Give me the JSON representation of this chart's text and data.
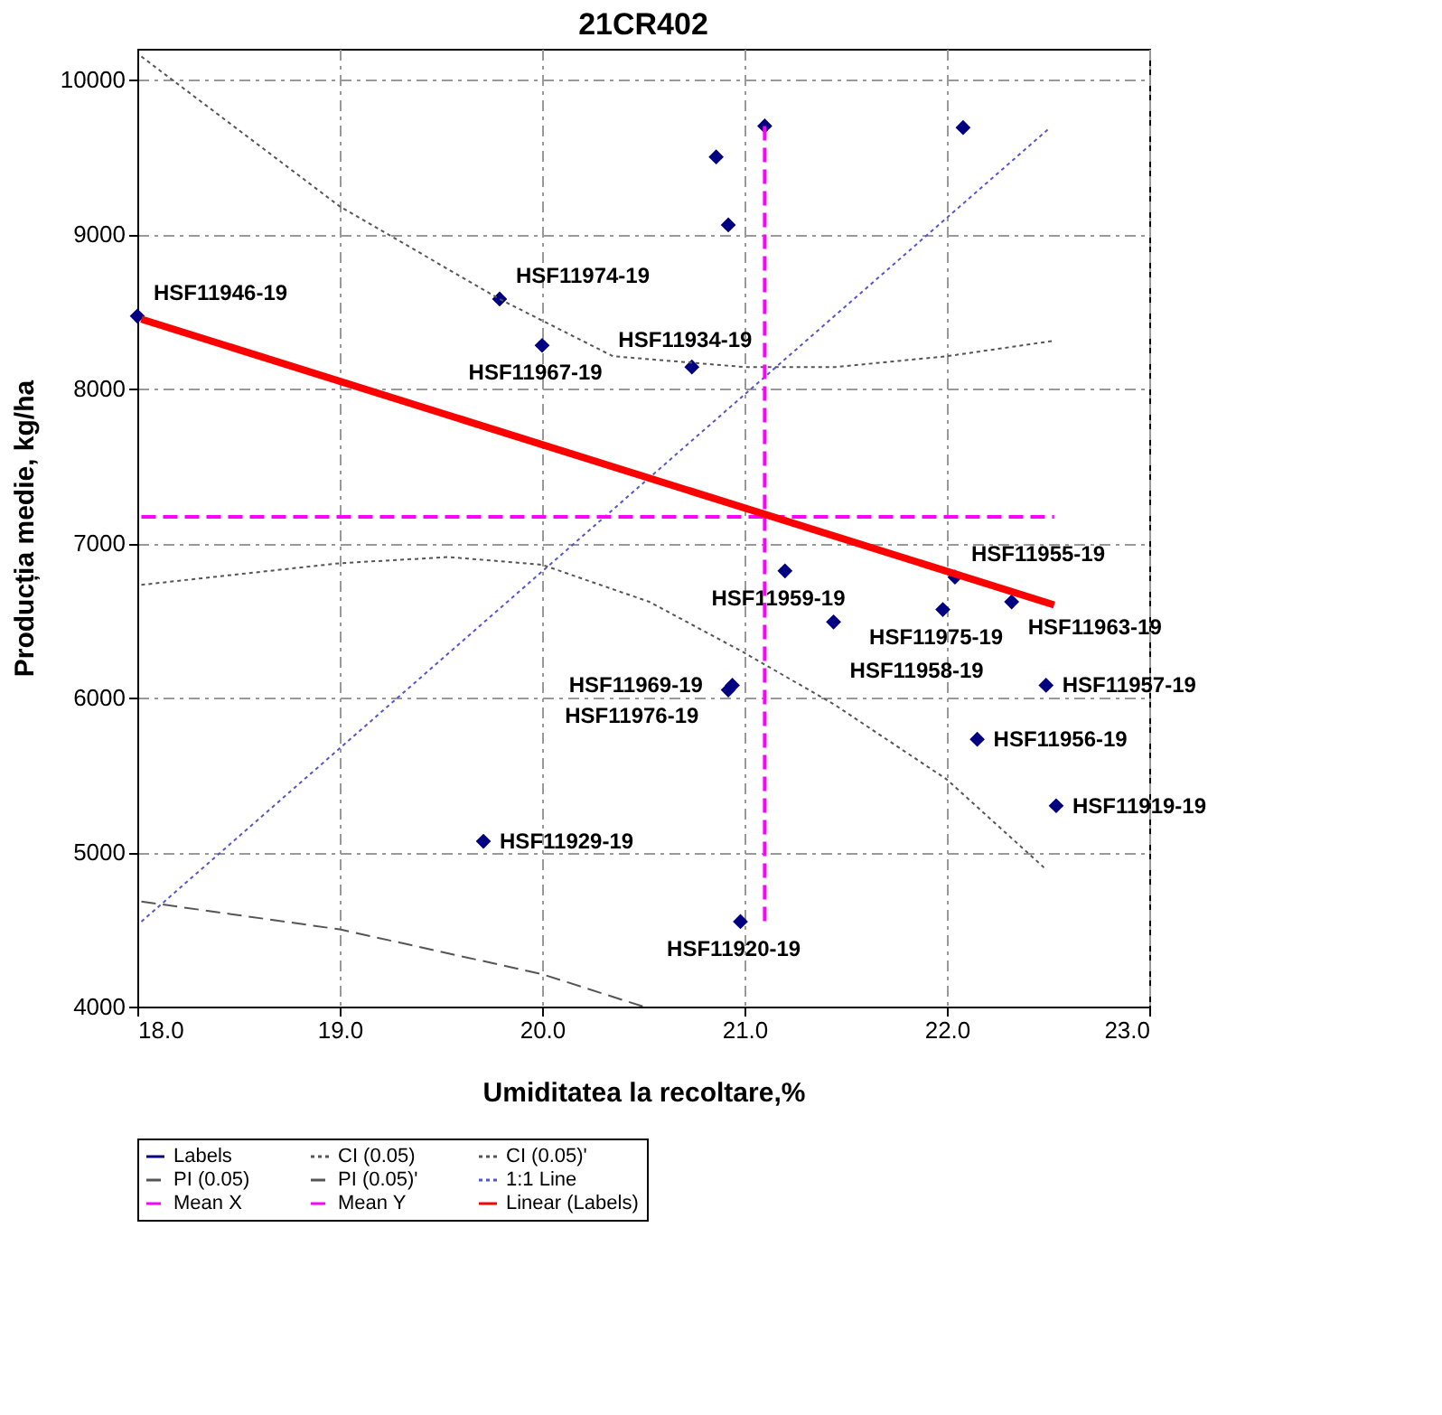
{
  "chart_data": {
    "type": "scatter",
    "title": "21CR402",
    "xlabel": "Umiditatea la recoltare,%",
    "ylabel": "Producția medie, kg/ha",
    "xlim": [
      18,
      23
    ],
    "xticks": [
      {
        "value": 18,
        "label": "18.0"
      },
      {
        "value": 19,
        "label": "19.0"
      },
      {
        "value": 20,
        "label": "20.0"
      },
      {
        "value": 21,
        "label": "21.0"
      },
      {
        "value": 22,
        "label": "22.0"
      },
      {
        "value": 23,
        "label": "23.0"
      }
    ],
    "ylim": [
      4000,
      10200
    ],
    "yticks": [
      4000,
      5000,
      6000,
      7000,
      8000,
      9000,
      10000
    ],
    "grid": true,
    "legend": "bottom",
    "series": [
      {
        "name": "Labels",
        "marker": "diamond",
        "color": "#000080",
        "x": [
          18.0,
          19.79,
          20.0,
          20.74,
          21.1,
          20.86,
          20.92,
          22.08,
          21.2,
          22.04,
          22.32,
          21.98,
          21.44,
          20.94,
          20.92,
          22.49,
          22.15,
          22.54,
          19.71,
          20.98
        ],
        "values": [
          8470,
          8580,
          8280,
          8140,
          9700,
          9500,
          9060,
          9690,
          6820,
          6780,
          6620,
          6570,
          6490,
          6080,
          6050,
          6080,
          5730,
          5300,
          5070,
          4550
        ],
        "value_labels": [
          "HSF11946-19",
          "HSF11974-19",
          "HSF11967-19",
          "HSF11934-19",
          null,
          null,
          null,
          null,
          "HSF11959-19",
          "HSF11955-19",
          "HSF11963-19",
          "HSF11975-19",
          "HSF11958-19",
          "HSF11969-19",
          "HSF11976-19",
          "HSF11957-19",
          "HSF11956-19",
          "HSF11919-19",
          "HSF11929-19",
          "HSF11920-19"
        ]
      },
      {
        "name": "CI (0.05)",
        "type": "line",
        "line_style": "dotted",
        "color": "#555555",
        "x": [
          18.02,
          19.0,
          19.79,
          20.35,
          21.0,
          21.45,
          22.0,
          22.53
        ],
        "values": [
          10150,
          9180,
          8580,
          8210,
          8140,
          8140,
          8210,
          8310
        ]
      },
      {
        "name": "CI (0.05)'",
        "type": "line",
        "line_style": "dotted",
        "color": "#555555",
        "x": [
          18.02,
          19.0,
          19.54,
          20.0,
          20.53,
          21.0,
          21.45,
          22.0,
          22.48
        ],
        "values": [
          6730,
          6870,
          6910,
          6860,
          6620,
          6290,
          5950,
          5470,
          4900
        ]
      },
      {
        "name": "PI (0.05)",
        "type": "line",
        "line_style": "dashed",
        "color": "#555555",
        "x": [
          18.02,
          19.0,
          20.0,
          20.5
        ],
        "values": [
          4680,
          4500,
          4210,
          4000
        ]
      },
      {
        "name": "PI (0.05)'",
        "type": "line",
        "line_style": "dashed",
        "color": "#555555"
      },
      {
        "name": "1:1 Line",
        "type": "line",
        "line_style": "dotted",
        "color": "#5555cc",
        "x": [
          18.02,
          22.51
        ],
        "values": [
          4550,
          9690
        ]
      },
      {
        "name": "Mean X",
        "type": "line",
        "line_style": "dashed",
        "color": "#ff00ff",
        "x": [
          21.1,
          21.1
        ],
        "values": [
          9700,
          4530
        ]
      },
      {
        "name": "Mean Y",
        "type": "line",
        "line_style": "dashed",
        "color": "#ff00ff",
        "x": [
          18.02,
          22.53
        ],
        "values": [
          7170,
          7170
        ]
      },
      {
        "name": "Linear (Labels)",
        "type": "line",
        "line_style": "solid",
        "color": "#ff0000",
        "x": [
          18.02,
          22.53
        ],
        "values": [
          8450,
          6600
        ]
      }
    ]
  }
}
